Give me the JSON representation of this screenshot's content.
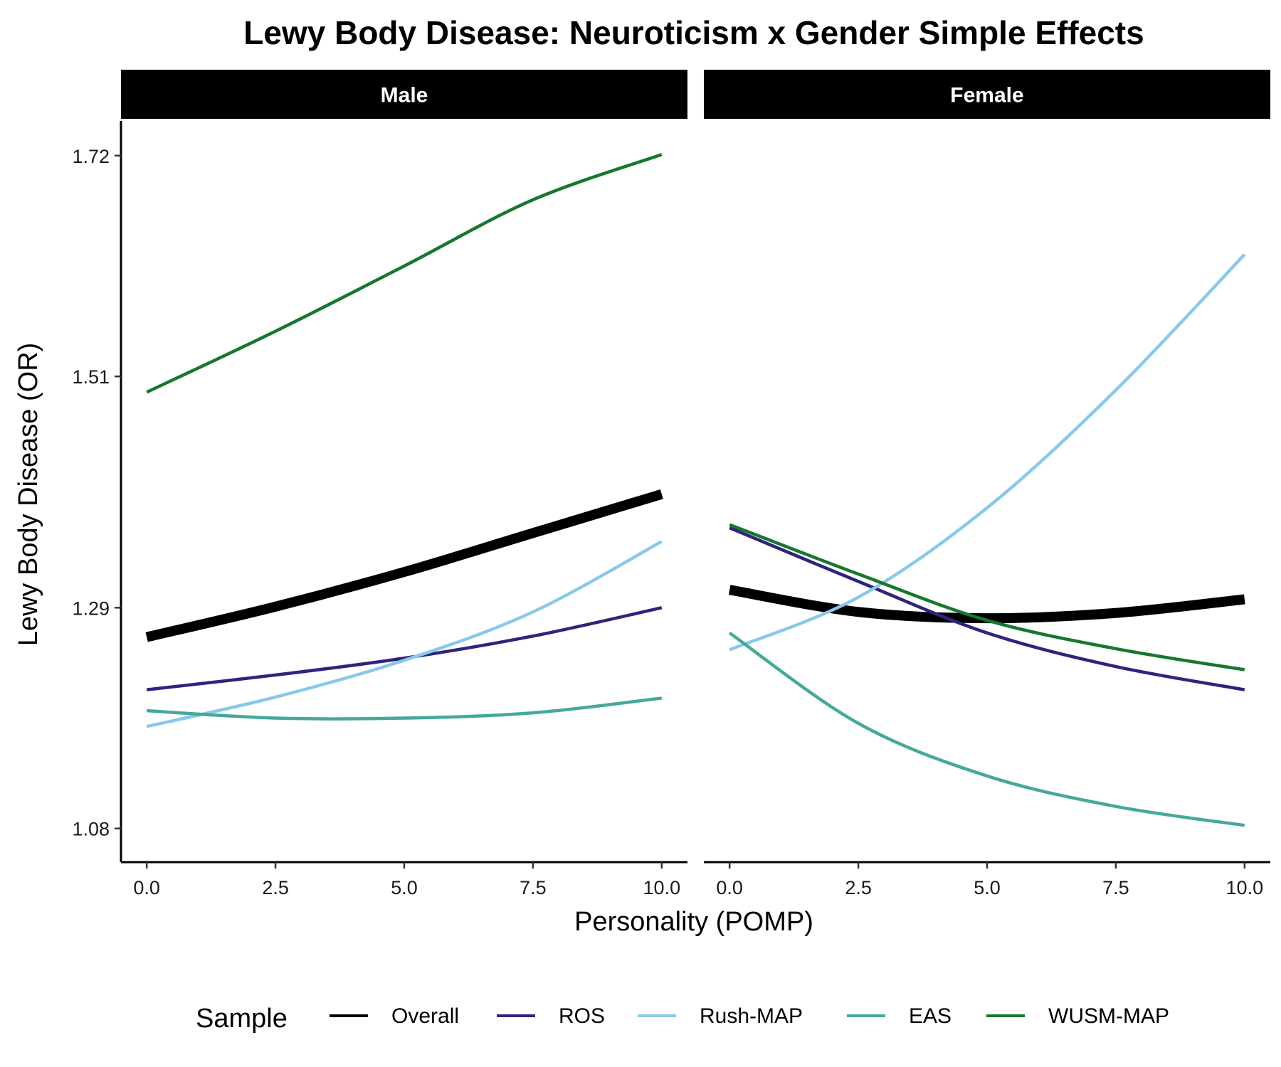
{
  "chart_data": {
    "type": "line",
    "title": "Lewy Body Disease: Neuroticism x Gender Simple Effects",
    "xlabel": "Personality (POMP)",
    "ylabel": "Lewy Body Disease (OR)",
    "xlim": [
      -0.5,
      10.5
    ],
    "ylim": [
      1.048,
      1.753
    ],
    "x_ticks": [
      0.0,
      2.5,
      5.0,
      7.5,
      10.0
    ],
    "x_tick_labels": [
      "0.0",
      "2.5",
      "5.0",
      "7.5",
      "10.0"
    ],
    "y_ticks": [
      1.08,
      1.29,
      1.51,
      1.72
    ],
    "y_tick_labels": [
      "1.08",
      "1.29",
      "1.51",
      "1.72"
    ],
    "grid": false,
    "legend": {
      "title": "Sample",
      "position": "bottom",
      "entries": [
        "Overall",
        "ROS",
        "Rush-MAP",
        "EAS",
        "WUSM-MAP"
      ]
    },
    "x": [
      0,
      2.5,
      5,
      7.5,
      10
    ],
    "panels": [
      {
        "label": "Male",
        "series": [
          {
            "name": "Overall",
            "color": "#000000",
            "width": 14,
            "values": [
              1.262,
              1.291,
              1.324,
              1.361,
              1.398
            ]
          },
          {
            "name": "ROS",
            "color": "#30237E",
            "width": 4.5,
            "values": [
              1.212,
              1.226,
              1.242,
              1.263,
              1.29
            ]
          },
          {
            "name": "Rush-MAP",
            "color": "#88C9EB",
            "width": 4.5,
            "values": [
              1.177,
              1.205,
              1.24,
              1.286,
              1.353
            ]
          },
          {
            "name": "EAS",
            "color": "#45A99A",
            "width": 4.5,
            "values": [
              1.192,
              1.185,
              1.185,
              1.19,
              1.204
            ]
          },
          {
            "name": "WUSM-MAP",
            "color": "#16772F",
            "width": 4.5,
            "values": [
              1.495,
              1.553,
              1.615,
              1.678,
              1.721
            ]
          }
        ]
      },
      {
        "label": "Female",
        "series": [
          {
            "name": "Overall",
            "color": "#000000",
            "width": 14,
            "values": [
              1.307,
              1.286,
              1.28,
              1.285,
              1.298
            ]
          },
          {
            "name": "ROS",
            "color": "#30237E",
            "width": 4.5,
            "values": [
              1.366,
              1.315,
              1.266,
              1.234,
              1.212
            ]
          },
          {
            "name": "Rush-MAP",
            "color": "#88C9EB",
            "width": 4.5,
            "values": [
              1.25,
              1.3,
              1.385,
              1.497,
              1.626
            ]
          },
          {
            "name": "EAS",
            "color": "#45A99A",
            "width": 4.5,
            "values": [
              1.266,
              1.18,
              1.13,
              1.101,
              1.083
            ]
          },
          {
            "name": "WUSM-MAP",
            "color": "#16772F",
            "width": 4.5,
            "values": [
              1.369,
              1.322,
              1.278,
              1.251,
              1.231
            ]
          }
        ]
      }
    ]
  }
}
